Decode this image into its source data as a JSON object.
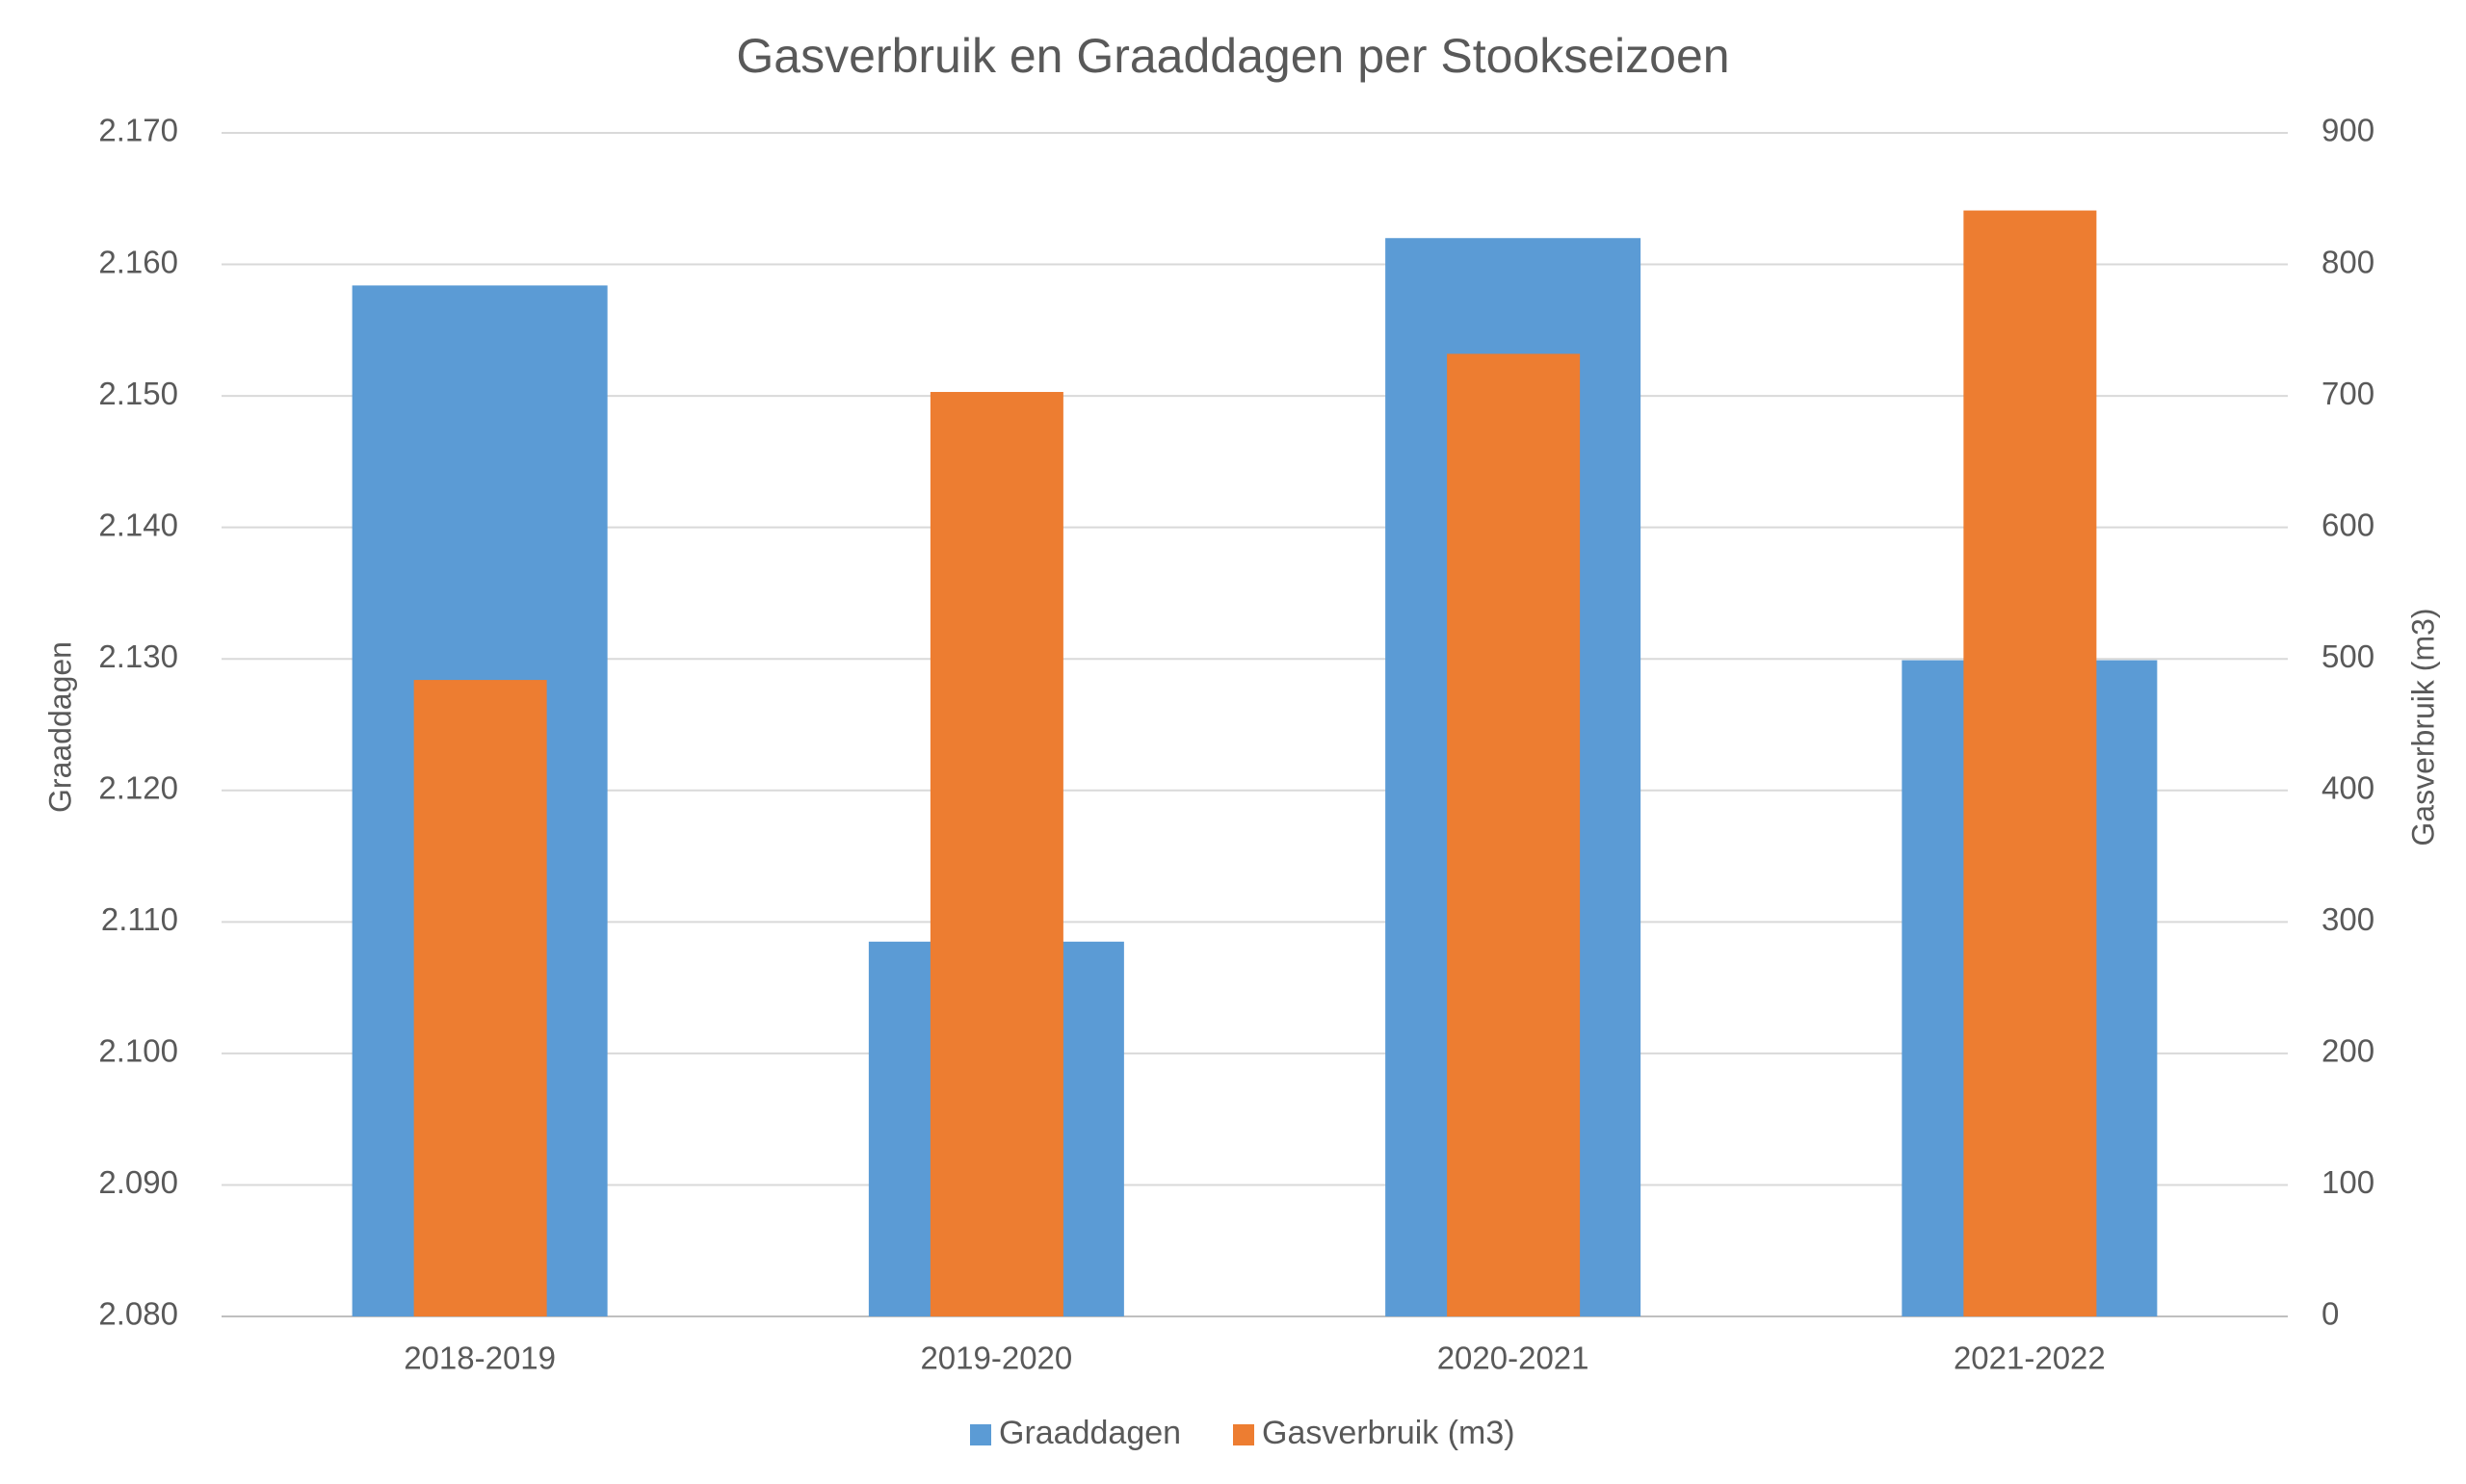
{
  "chart_data": {
    "type": "bar",
    "title": "Gasverbruik en Graaddagen per Stookseizoen",
    "categories": [
      "2018-2019",
      "2019-2020",
      "2020-2021",
      "2021-2022"
    ],
    "series": [
      {
        "name": "Graaddagen",
        "axis": "left",
        "color": "#5B9BD5",
        "values": [
          2158.4,
          2108.5,
          2162.0,
          2129.9
        ]
      },
      {
        "name": "Gasverbruik (m3)",
        "axis": "right",
        "color": "#ED7D31",
        "values": [
          484,
          703,
          732,
          841
        ]
      }
    ],
    "y_left": {
      "label": "Graaddagen",
      "ylim": [
        2080,
        2170
      ],
      "ticks": [
        2080,
        2090,
        2100,
        2110,
        2120,
        2130,
        2140,
        2150,
        2160,
        2170
      ],
      "tick_labels": [
        "2.080",
        "2.090",
        "2.100",
        "2.110",
        "2.120",
        "2.130",
        "2.140",
        "2.150",
        "2.160",
        "2.170"
      ]
    },
    "y_right": {
      "label": "Gasverbruik (m3)",
      "ylim": [
        0,
        900
      ],
      "ticks": [
        0,
        100,
        200,
        300,
        400,
        500,
        600,
        700,
        800,
        900
      ],
      "tick_labels": [
        "0",
        "100",
        "200",
        "300",
        "400",
        "500",
        "600",
        "700",
        "800",
        "900"
      ]
    },
    "grid": true,
    "legend_position": "bottom"
  }
}
